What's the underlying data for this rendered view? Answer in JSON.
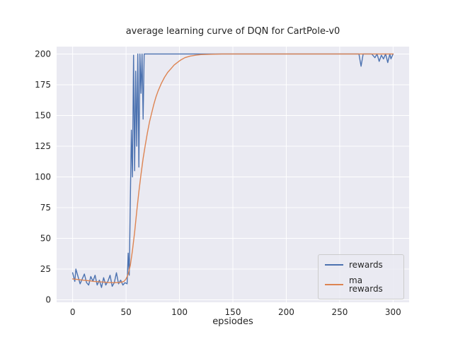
{
  "chart_data": {
    "type": "line",
    "title": "average learning curve of DQN for CartPole-v0",
    "xlabel": "epsiodes",
    "ylabel": "",
    "xlim": [
      -15,
      315
    ],
    "ylim": [
      -2,
      206
    ],
    "xticks": [
      0,
      50,
      100,
      150,
      200,
      250,
      300
    ],
    "yticks": [
      0,
      25,
      50,
      75,
      100,
      125,
      150,
      175,
      200
    ],
    "grid": true,
    "legend_position": "lower right",
    "colors": {
      "axes_background": "#eaeaf2",
      "grid": "#ffffff",
      "text": "#262626",
      "rewards": "#4c72b0",
      "ma_rewards": "#dd8452"
    },
    "series": [
      {
        "name": "rewards",
        "color": "#4c72b0",
        "points": [
          [
            0,
            22
          ],
          [
            2,
            15
          ],
          [
            3,
            25
          ],
          [
            5,
            19
          ],
          [
            7,
            13
          ],
          [
            9,
            17
          ],
          [
            11,
            21
          ],
          [
            13,
            14
          ],
          [
            15,
            12
          ],
          [
            17,
            19
          ],
          [
            19,
            15
          ],
          [
            21,
            20
          ],
          [
            23,
            12
          ],
          [
            25,
            16
          ],
          [
            27,
            10
          ],
          [
            29,
            18
          ],
          [
            31,
            12
          ],
          [
            33,
            15
          ],
          [
            35,
            20
          ],
          [
            37,
            11
          ],
          [
            39,
            14
          ],
          [
            41,
            22
          ],
          [
            43,
            13
          ],
          [
            45,
            16
          ],
          [
            47,
            12
          ],
          [
            49,
            14
          ],
          [
            51,
            13
          ],
          [
            52,
            38
          ],
          [
            53,
            20
          ],
          [
            55,
            138
          ],
          [
            56,
            100
          ],
          [
            57,
            199
          ],
          [
            58,
            105
          ],
          [
            59,
            186
          ],
          [
            60,
            125
          ],
          [
            61,
            200
          ],
          [
            62,
            108
          ],
          [
            63,
            200
          ],
          [
            64,
            168
          ],
          [
            65,
            200
          ],
          [
            66,
            147
          ],
          [
            67,
            200
          ],
          [
            68,
            200
          ],
          [
            80,
            200
          ],
          [
            100,
            200
          ],
          [
            150,
            200
          ],
          [
            200,
            200
          ],
          [
            250,
            200
          ],
          [
            268,
            200
          ],
          [
            270,
            190
          ],
          [
            272,
            200
          ],
          [
            280,
            200
          ],
          [
            283,
            197
          ],
          [
            285,
            200
          ],
          [
            287,
            194
          ],
          [
            289,
            199
          ],
          [
            291,
            196
          ],
          [
            293,
            200
          ],
          [
            295,
            193
          ],
          [
            297,
            200
          ],
          [
            298,
            196
          ],
          [
            300,
            200
          ]
        ]
      },
      {
        "name": "ma rewards",
        "color": "#dd8452",
        "points": [
          [
            0,
            17
          ],
          [
            5,
            16.5
          ],
          [
            10,
            16
          ],
          [
            15,
            15.5
          ],
          [
            20,
            15
          ],
          [
            25,
            14.6
          ],
          [
            30,
            14.3
          ],
          [
            35,
            14
          ],
          [
            40,
            14
          ],
          [
            45,
            14.2
          ],
          [
            48,
            15
          ],
          [
            50,
            17
          ],
          [
            52,
            21
          ],
          [
            54,
            28
          ],
          [
            56,
            40
          ],
          [
            58,
            55
          ],
          [
            60,
            72
          ],
          [
            62,
            88
          ],
          [
            64,
            102
          ],
          [
            66,
            115
          ],
          [
            68,
            126
          ],
          [
            70,
            136
          ],
          [
            72,
            145
          ],
          [
            74,
            152
          ],
          [
            76,
            159
          ],
          [
            78,
            165
          ],
          [
            80,
            170
          ],
          [
            83,
            176
          ],
          [
            86,
            181
          ],
          [
            89,
            185
          ],
          [
            92,
            188
          ],
          [
            95,
            191
          ],
          [
            98,
            193
          ],
          [
            101,
            195
          ],
          [
            105,
            197
          ],
          [
            110,
            198.3
          ],
          [
            115,
            199
          ],
          [
            120,
            199.5
          ],
          [
            130,
            199.8
          ],
          [
            140,
            200
          ],
          [
            150,
            200
          ],
          [
            200,
            200
          ],
          [
            250,
            200
          ],
          [
            300,
            200
          ]
        ]
      }
    ]
  }
}
